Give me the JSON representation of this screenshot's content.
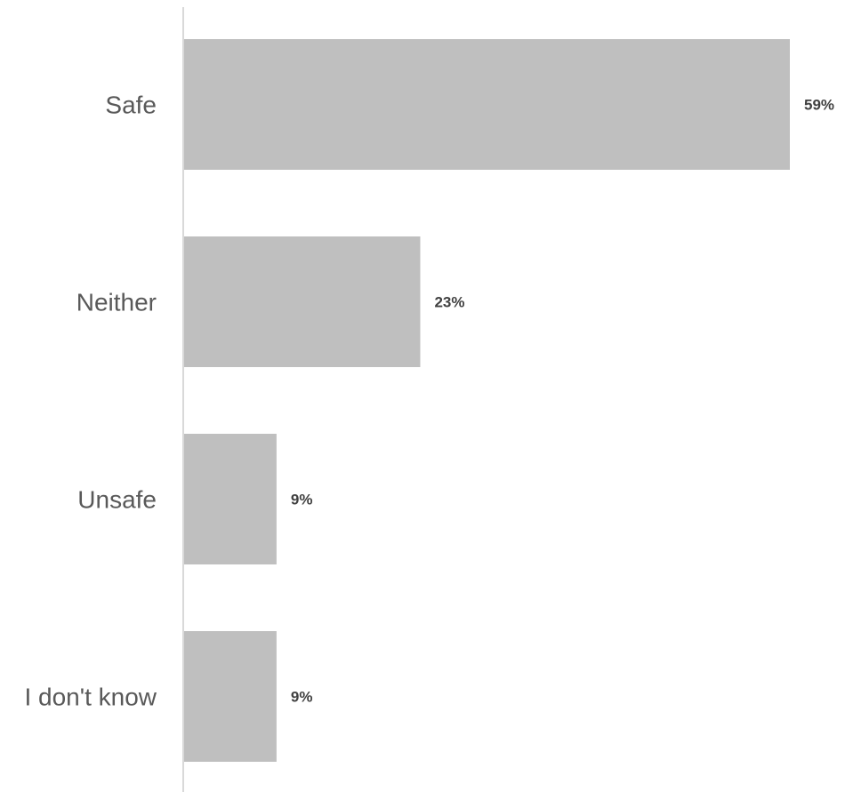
{
  "chart_data": {
    "type": "bar",
    "orientation": "horizontal",
    "categories": [
      "Safe",
      "Neither",
      "Unsafe",
      "I don't know"
    ],
    "values": [
      59,
      23,
      9,
      9
    ],
    "value_labels": [
      "59%",
      "23%",
      "9%",
      "9%"
    ],
    "unit": "%",
    "title": "",
    "xlabel": "",
    "ylabel": "",
    "xlim": [
      0,
      59
    ],
    "grid": false,
    "legend": "none",
    "bar_color": "#bfbfbf",
    "axis_color": "#d9d9d9"
  }
}
